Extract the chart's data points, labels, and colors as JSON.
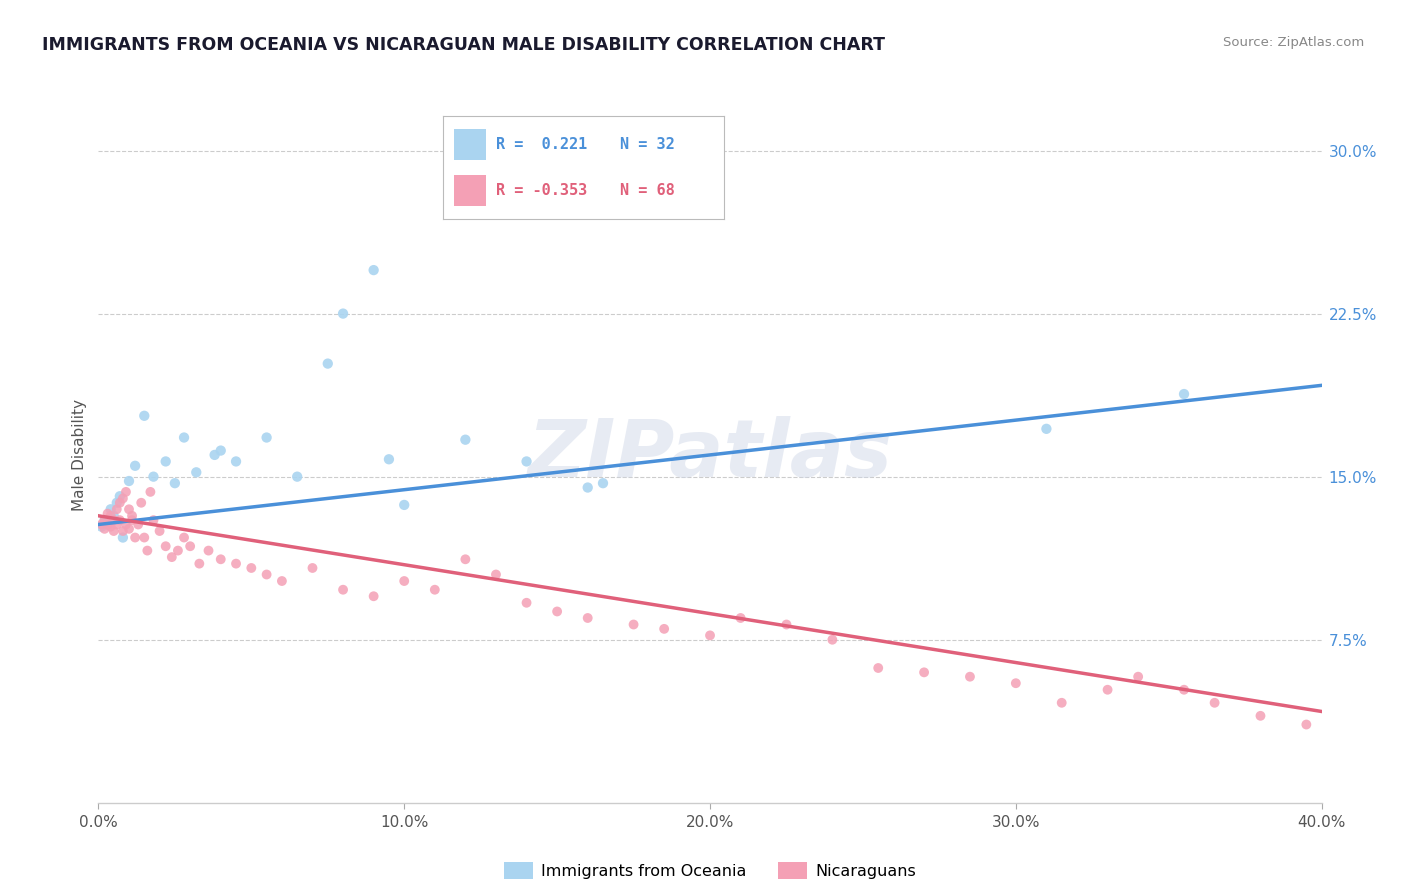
{
  "title": "IMMIGRANTS FROM OCEANIA VS NICARAGUAN MALE DISABILITY CORRELATION CHART",
  "source_text": "Source: ZipAtlas.com",
  "ylabel": "Male Disability",
  "xlim": [
    0.0,
    0.4
  ],
  "ylim": [
    0.0,
    0.32
  ],
  "xticks": [
    0.0,
    0.1,
    0.2,
    0.3,
    0.4
  ],
  "xtick_labels": [
    "0.0%",
    "10.0%",
    "20.0%",
    "30.0%",
    "40.0%"
  ],
  "ytick_labels_right": [
    "7.5%",
    "15.0%",
    "22.5%",
    "30.0%"
  ],
  "yticks_right": [
    0.075,
    0.15,
    0.225,
    0.3
  ],
  "r_oceania": 0.221,
  "n_oceania": 32,
  "r_nicaraguan": -0.353,
  "n_nicaraguan": 68,
  "color_oceania": "#aad4f0",
  "color_oceania_line": "#4a90d9",
  "color_nicaraguan": "#f4a0b5",
  "color_nicaraguan_line": "#e0607a",
  "watermark": "ZIPatlas",
  "oceania_x": [
    0.001,
    0.002,
    0.003,
    0.004,
    0.005,
    0.006,
    0.007,
    0.008,
    0.01,
    0.012,
    0.015,
    0.018,
    0.022,
    0.025,
    0.028,
    0.032,
    0.038,
    0.04,
    0.045,
    0.055,
    0.065,
    0.075,
    0.08,
    0.09,
    0.095,
    0.1,
    0.12,
    0.14,
    0.16,
    0.165,
    0.31,
    0.355
  ],
  "oceania_y": [
    0.127,
    0.13,
    0.128,
    0.135,
    0.132,
    0.138,
    0.141,
    0.122,
    0.148,
    0.155,
    0.178,
    0.15,
    0.157,
    0.147,
    0.168,
    0.152,
    0.16,
    0.162,
    0.157,
    0.168,
    0.15,
    0.202,
    0.225,
    0.245,
    0.158,
    0.137,
    0.167,
    0.157,
    0.145,
    0.147,
    0.172,
    0.188
  ],
  "nicaraguan_x": [
    0.001,
    0.002,
    0.002,
    0.003,
    0.003,
    0.004,
    0.004,
    0.005,
    0.005,
    0.006,
    0.006,
    0.007,
    0.007,
    0.008,
    0.008,
    0.009,
    0.009,
    0.01,
    0.01,
    0.011,
    0.011,
    0.012,
    0.013,
    0.014,
    0.015,
    0.016,
    0.017,
    0.018,
    0.02,
    0.022,
    0.024,
    0.026,
    0.028,
    0.03,
    0.033,
    0.036,
    0.04,
    0.045,
    0.05,
    0.055,
    0.06,
    0.07,
    0.08,
    0.09,
    0.1,
    0.11,
    0.12,
    0.13,
    0.14,
    0.15,
    0.16,
    0.175,
    0.185,
    0.2,
    0.21,
    0.225,
    0.24,
    0.255,
    0.27,
    0.285,
    0.3,
    0.315,
    0.33,
    0.34,
    0.355,
    0.365,
    0.38,
    0.395
  ],
  "nicaraguan_y": [
    0.128,
    0.13,
    0.126,
    0.133,
    0.128,
    0.132,
    0.127,
    0.13,
    0.125,
    0.128,
    0.135,
    0.13,
    0.138,
    0.125,
    0.14,
    0.128,
    0.143,
    0.135,
    0.126,
    0.13,
    0.132,
    0.122,
    0.128,
    0.138,
    0.122,
    0.116,
    0.143,
    0.13,
    0.125,
    0.118,
    0.113,
    0.116,
    0.122,
    0.118,
    0.11,
    0.116,
    0.112,
    0.11,
    0.108,
    0.105,
    0.102,
    0.108,
    0.098,
    0.095,
    0.102,
    0.098,
    0.112,
    0.105,
    0.092,
    0.088,
    0.085,
    0.082,
    0.08,
    0.077,
    0.085,
    0.082,
    0.075,
    0.062,
    0.06,
    0.058,
    0.055,
    0.046,
    0.052,
    0.058,
    0.052,
    0.046,
    0.04,
    0.036
  ],
  "line_oceania_x0": 0.0,
  "line_oceania_y0": 0.128,
  "line_oceania_x1": 0.4,
  "line_oceania_y1": 0.192,
  "line_nicaraguan_x0": 0.0,
  "line_nicaraguan_y0": 0.132,
  "line_nicaraguan_x1": 0.4,
  "line_nicaraguan_y1": 0.042
}
